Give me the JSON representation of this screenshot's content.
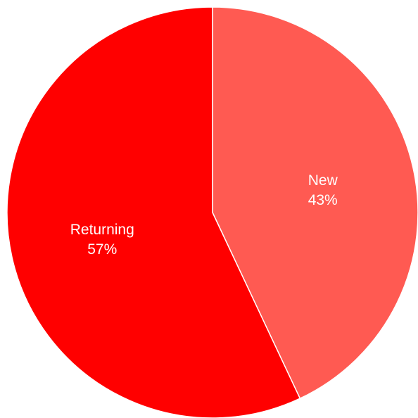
{
  "chart_data": {
    "type": "pie",
    "slices": [
      {
        "label": "New",
        "value": 43,
        "display": "43%",
        "color": "#ff5a52"
      },
      {
        "label": "Returning",
        "value": 57,
        "display": "57%",
        "color": "#ff0000"
      }
    ],
    "start_angle_deg": 0,
    "direction": "clockwise",
    "separator_color": "#ffffff"
  }
}
